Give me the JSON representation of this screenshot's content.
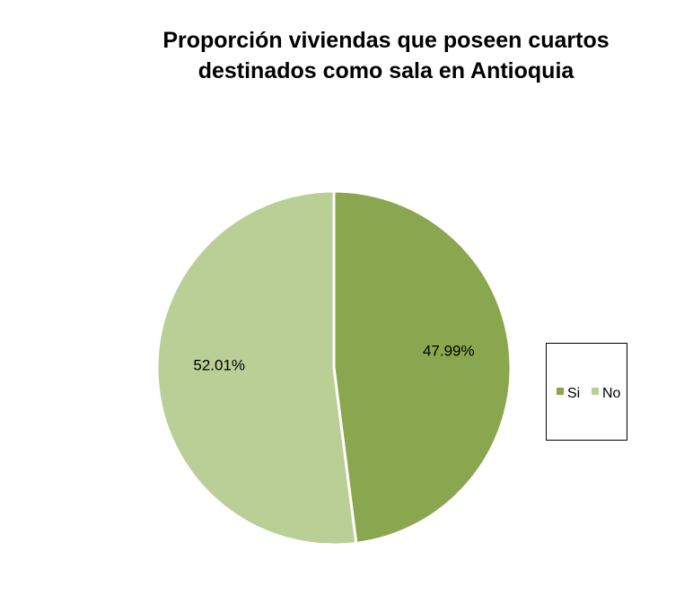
{
  "chart_data": {
    "type": "pie",
    "title_lines": [
      "Proporción viviendas que poseen cuartos",
      "destinados como sala en Antioquia"
    ],
    "categories": [
      "Si",
      "No"
    ],
    "values": [
      47.99,
      52.01
    ],
    "data_labels": [
      "47.99%",
      "52.01%"
    ],
    "colors": [
      "#8aa64e",
      "#b9cf96"
    ],
    "slice_border_color": "#ffffff",
    "start_angle": "12 o'clock",
    "direction": "clockwise",
    "legend_position": "right",
    "legend_entries": [
      {
        "label": "Si",
        "color": "#8aa64e"
      },
      {
        "label": "No",
        "color": "#b9cf96"
      }
    ]
  }
}
